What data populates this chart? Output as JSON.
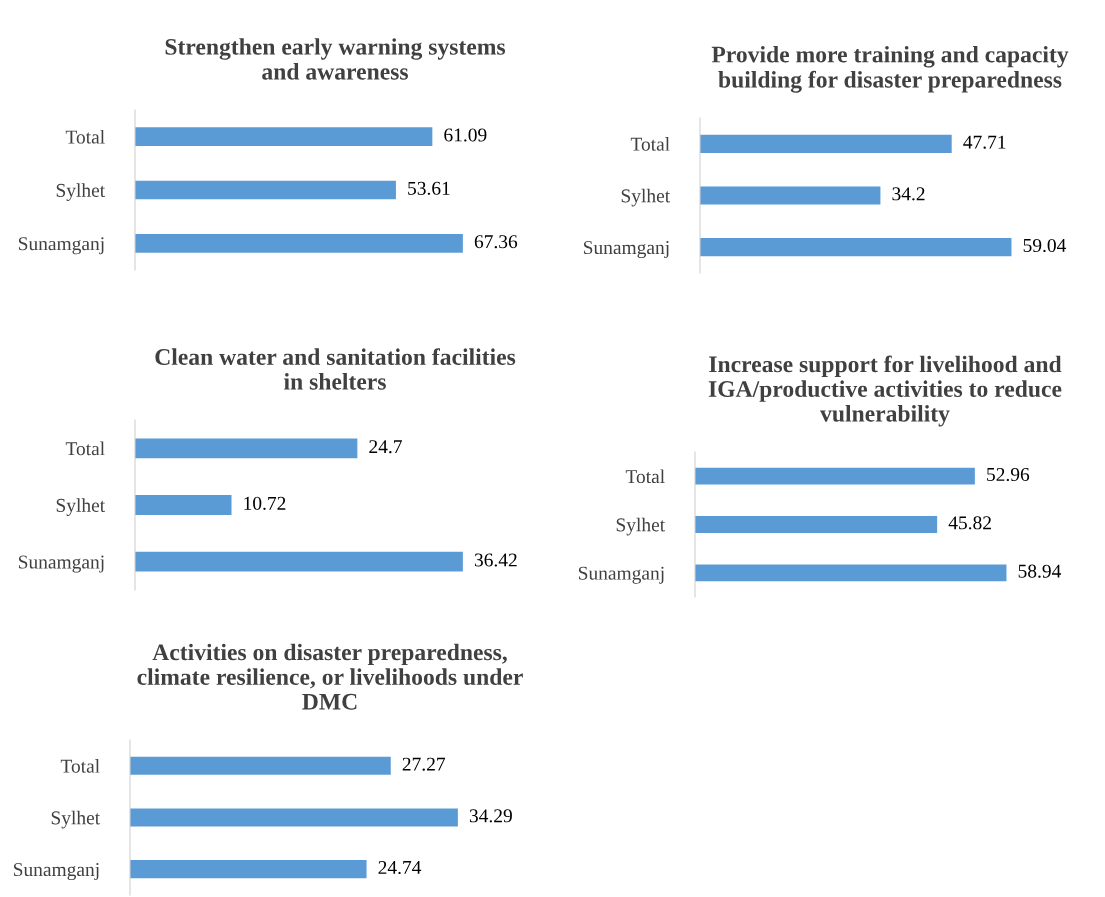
{
  "chart_data": [
    {
      "type": "bar",
      "orientation": "horizontal",
      "title": "Strengthen early warning systems\nand awareness",
      "categories": [
        "Total",
        "Sylhet",
        "Sunamganj"
      ],
      "values": [
        61.09,
        53.61,
        67.36
      ],
      "color": "#5b9bd5",
      "data_labels": true,
      "tick_labels": "y",
      "grid": false,
      "legend": false
    },
    {
      "type": "bar",
      "orientation": "horizontal",
      "title": "Provide more training and capacity\nbuilding for disaster preparedness",
      "categories": [
        "Total",
        "Sylhet",
        "Sunamganj"
      ],
      "values": [
        47.71,
        34.2,
        59.04
      ],
      "color": "#5b9bd5",
      "data_labels": true,
      "tick_labels": "y",
      "grid": false,
      "legend": false
    },
    {
      "type": "bar",
      "orientation": "horizontal",
      "title": "Clean water and sanitation facilities\nin shelters",
      "categories": [
        "Total",
        "Sylhet",
        "Sunamganj"
      ],
      "values": [
        24.7,
        10.72,
        36.42
      ],
      "color": "#5b9bd5",
      "data_labels": true,
      "tick_labels": "y",
      "grid": false,
      "legend": false
    },
    {
      "type": "bar",
      "orientation": "horizontal",
      "title": "Increase support for livelihood and\nIGA/productive activities to reduce\nvulnerability",
      "categories": [
        "Total",
        "Sylhet",
        "Sunamganj"
      ],
      "values": [
        52.96,
        45.82,
        58.94
      ],
      "color": "#5b9bd5",
      "data_labels": true,
      "tick_labels": "y",
      "grid": false,
      "legend": false
    },
    {
      "type": "bar",
      "orientation": "horizontal",
      "title": "Activities on disaster preparedness,\nclimate resilience, or livelihoods under\nDMC",
      "categories": [
        "Total",
        "Sylhet",
        "Sunamganj"
      ],
      "values": [
        27.27,
        34.29,
        24.74
      ],
      "color": "#5b9bd5",
      "data_labels": true,
      "tick_labels": "y",
      "grid": false,
      "legend": false
    }
  ]
}
